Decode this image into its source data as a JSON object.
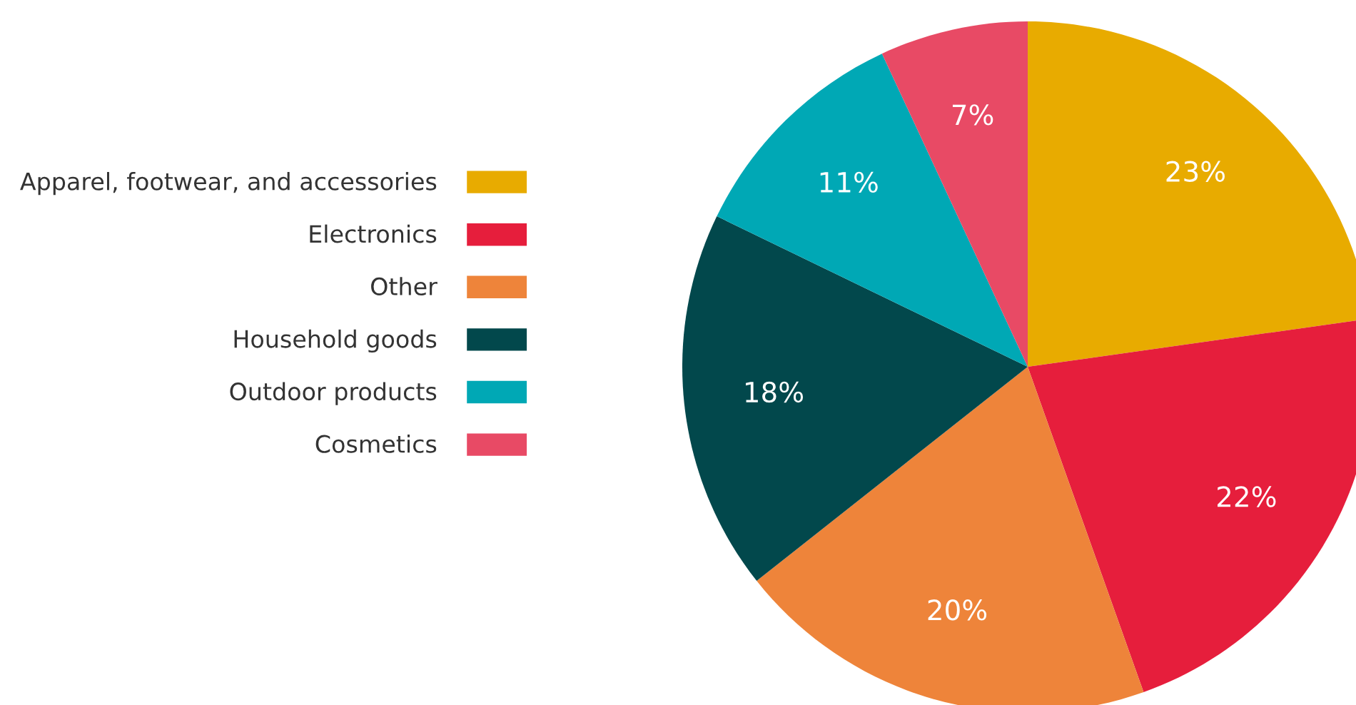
{
  "chart_data": {
    "type": "pie",
    "categories": [
      "Apparel, footwear, and accessories",
      "Electronics",
      "Other",
      "Household goods",
      "Outdoor products",
      "Cosmetics"
    ],
    "values": [
      23,
      22,
      20,
      18,
      11,
      7
    ],
    "value_labels": [
      "23%",
      "22%",
      "20%",
      "18%",
      "11%",
      "7%"
    ],
    "colors": [
      "#e8ab00",
      "#e61e3c",
      "#ee843a",
      "#02484c",
      "#00a8b5",
      "#e84a65"
    ],
    "legend": "left"
  }
}
